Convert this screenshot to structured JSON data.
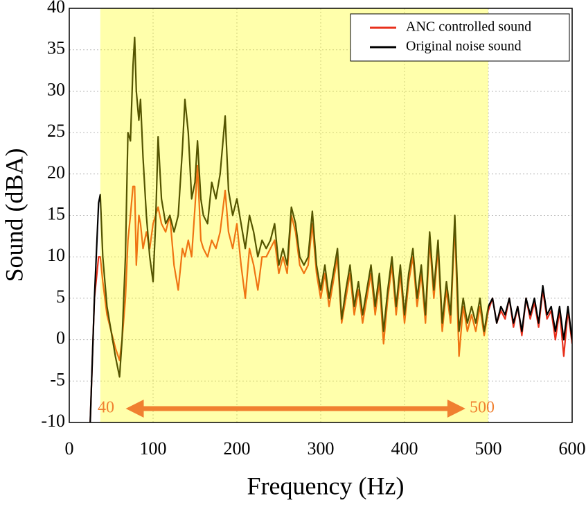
{
  "chart_data": {
    "type": "line",
    "xlabel": "Frequency (Hz)",
    "ylabel": "Sound (dBA)",
    "xlim": [
      0,
      600
    ],
    "xticks": [
      0,
      100,
      200,
      300,
      400,
      500,
      600
    ],
    "ylim": [
      -10,
      40
    ],
    "yticks": [
      -10,
      -5,
      0,
      5,
      10,
      15,
      20,
      25,
      30,
      35,
      40
    ],
    "grid": true,
    "legend": "upper right",
    "highlight": {
      "xlim": [
        37,
        500
      ],
      "color": "#ffff00",
      "arrow": [
        74,
        466
      ],
      "labels": [
        "40",
        "500"
      ],
      "label_color": "#f08030"
    },
    "x": [
      25,
      30,
      35,
      37,
      40,
      45,
      50,
      55,
      60,
      63,
      67,
      70,
      73,
      76,
      78,
      80,
      83,
      85,
      88,
      92,
      96,
      100,
      103,
      106,
      110,
      115,
      120,
      125,
      130,
      135,
      138,
      142,
      146,
      150,
      153,
      157,
      160,
      165,
      170,
      175,
      180,
      186,
      190,
      195,
      200,
      205,
      210,
      215,
      220,
      225,
      230,
      235,
      240,
      245,
      250,
      255,
      260,
      265,
      270,
      275,
      280,
      285,
      290,
      295,
      300,
      305,
      310,
      315,
      320,
      325,
      330,
      335,
      340,
      345,
      350,
      355,
      360,
      365,
      370,
      375,
      380,
      385,
      390,
      395,
      400,
      405,
      410,
      415,
      420,
      425,
      430,
      435,
      440,
      445,
      450,
      455,
      460,
      465,
      470,
      475,
      480,
      485,
      490,
      495,
      500,
      505,
      510,
      515,
      520,
      525,
      530,
      535,
      540,
      545,
      550,
      555,
      560,
      565,
      570,
      575,
      580,
      585,
      590,
      595,
      600
    ],
    "series": [
      {
        "name": "ANC controlled sound",
        "color": "#e8301c",
        "values": [
          -10,
          5,
          10,
          10,
          7,
          3,
          1,
          -1,
          -2.5,
          0,
          5,
          12,
          15,
          18.5,
          18.5,
          9,
          15,
          14,
          11,
          13,
          11,
          14,
          15,
          16,
          14,
          13,
          15,
          9,
          6,
          11,
          10,
          12,
          10,
          16,
          21,
          12,
          11,
          10,
          12,
          11,
          13,
          18,
          13,
          11,
          14,
          9,
          5,
          11,
          9,
          6,
          10,
          10,
          11,
          12,
          8,
          10,
          8,
          15,
          13,
          9,
          8,
          9,
          14,
          8,
          5,
          8,
          4,
          7,
          10,
          2,
          5,
          8,
          3,
          6,
          2,
          5,
          8,
          3,
          7,
          -0.5,
          5,
          9,
          3,
          8,
          2,
          7,
          10,
          4,
          8,
          2,
          12,
          5,
          11,
          1,
          6,
          2,
          14,
          -2,
          4,
          1,
          3,
          1,
          4,
          0.5,
          3.5,
          5,
          2,
          3.5,
          2.5,
          5,
          1.5,
          4,
          0.5,
          5,
          2.5,
          4.5,
          1.5,
          6,
          2.5,
          3.5,
          0,
          3.5,
          -2,
          3.5,
          -0.5
        ]
      },
      {
        "name": "Original noise sound",
        "color": "#000000",
        "values": [
          -10,
          5,
          16.5,
          17.5,
          10,
          4,
          1,
          -2,
          -4.5,
          0,
          10,
          25,
          24,
          33,
          36.5,
          30,
          26.5,
          29,
          22,
          15,
          10,
          7,
          14,
          24.5,
          17,
          14,
          15,
          13,
          15,
          23,
          29,
          25,
          17,
          19,
          24,
          17,
          15,
          14,
          19,
          17,
          20,
          27,
          18,
          15,
          17,
          14,
          11,
          15,
          13,
          10,
          12,
          11,
          12,
          14,
          9,
          11,
          9,
          16,
          14,
          10,
          9,
          10,
          15.5,
          9,
          6,
          9,
          5,
          8,
          11,
          2.5,
          6,
          9,
          4,
          7,
          3,
          6,
          9,
          4,
          8,
          1,
          6,
          10,
          4,
          9,
          3,
          8,
          11,
          5,
          9,
          3,
          13,
          6,
          12,
          2,
          7,
          3,
          15,
          1,
          5,
          2,
          4,
          2,
          5,
          1,
          4,
          5,
          2,
          4,
          3,
          5,
          2,
          4,
          1,
          5,
          3,
          5,
          2,
          6.5,
          3,
          4,
          1,
          4,
          0,
          4,
          0
        ]
      }
    ]
  }
}
